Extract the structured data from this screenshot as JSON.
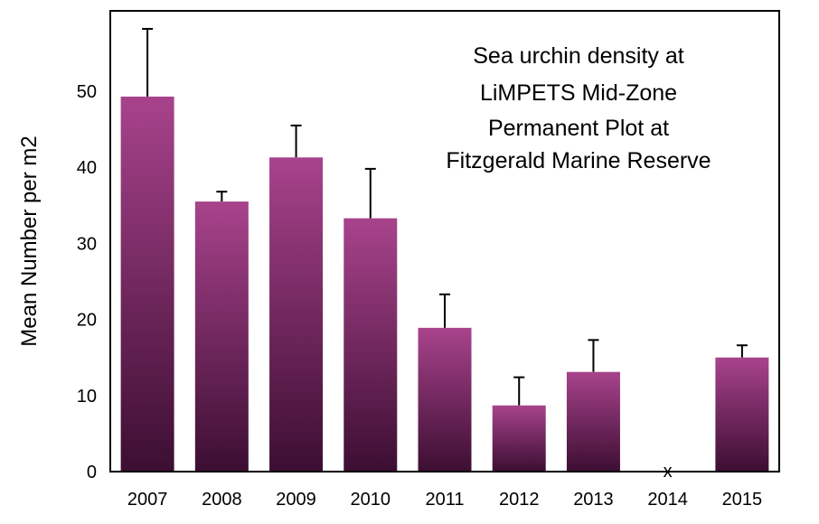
{
  "chart_data": {
    "type": "bar",
    "title": [
      "Sea urchin density at",
      "LiMPETS Mid-Zone",
      "Permanent Plot at",
      "Fitzgerald Marine Reserve"
    ],
    "xlabel": "",
    "ylabel": "Mean Number per m2",
    "ylim": [
      0,
      60.5
    ],
    "yticks": [
      0,
      10,
      20,
      30,
      40,
      50
    ],
    "grid": false,
    "categories": [
      "2007",
      "2008",
      "2009",
      "2010",
      "2011",
      "2012",
      "2013",
      "2014",
      "2015"
    ],
    "values": [
      49.3,
      35.5,
      41.3,
      33.3,
      18.9,
      8.7,
      13.1,
      0,
      15.0
    ],
    "error_upper": [
      58.2,
      36.8,
      45.5,
      39.8,
      23.3,
      12.4,
      17.3,
      null,
      16.6
    ],
    "missing_marker": {
      "category": "2014",
      "symbol": "x"
    },
    "colors": {
      "bar_top": "#a8438c",
      "bar_bottom": "#3c0e32",
      "axis": "#000000"
    }
  }
}
